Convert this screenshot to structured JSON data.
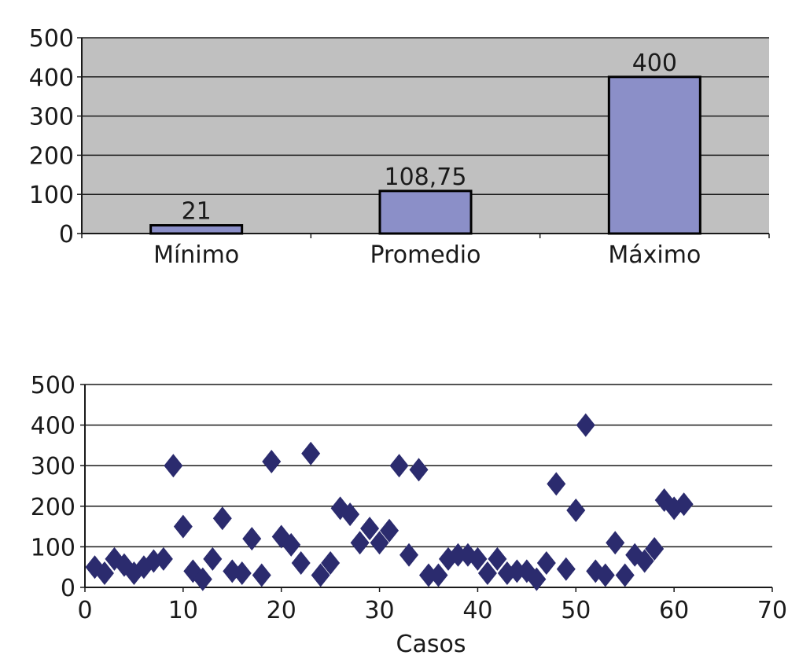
{
  "chart_data": [
    {
      "type": "bar",
      "categories": [
        "Mínimo",
        "Promedio",
        "Máximo"
      ],
      "values": [
        21,
        108.75,
        400
      ],
      "data_labels": [
        "21",
        "108,75",
        "400"
      ],
      "ylim": [
        0,
        500
      ],
      "yticks": [
        "0",
        "100",
        "200",
        "300",
        "400",
        "500"
      ],
      "grid": true,
      "colors": {
        "plot_bg": "#c0c0c0",
        "bar": "#8b8fc8",
        "bar_edge": "#000000",
        "grid": "#1a1a1a"
      }
    },
    {
      "type": "scatter",
      "xlabel": "Casos",
      "xlim": [
        0,
        70
      ],
      "ylim": [
        0,
        500
      ],
      "xticks": [
        "0",
        "10",
        "20",
        "30",
        "40",
        "50",
        "60",
        "70"
      ],
      "yticks": [
        "0",
        "100",
        "200",
        "300",
        "400",
        "500"
      ],
      "grid": true,
      "colors": {
        "marker": "#2b2b6e",
        "grid": "#1a1a1a"
      },
      "marker": "diamond",
      "points": [
        [
          1,
          50
        ],
        [
          2,
          35
        ],
        [
          3,
          70
        ],
        [
          4,
          55
        ],
        [
          5,
          35
        ],
        [
          6,
          50
        ],
        [
          7,
          65
        ],
        [
          8,
          70
        ],
        [
          9,
          300
        ],
        [
          10,
          150
        ],
        [
          11,
          40
        ],
        [
          12,
          20
        ],
        [
          13,
          70
        ],
        [
          14,
          170
        ],
        [
          15,
          40
        ],
        [
          16,
          35
        ],
        [
          17,
          120
        ],
        [
          18,
          30
        ],
        [
          19,
          310
        ],
        [
          20,
          125
        ],
        [
          21,
          105
        ],
        [
          22,
          60
        ],
        [
          23,
          330
        ],
        [
          24,
          30
        ],
        [
          25,
          60
        ],
        [
          26,
          195
        ],
        [
          27,
          180
        ],
        [
          28,
          110
        ],
        [
          29,
          145
        ],
        [
          30,
          110
        ],
        [
          31,
          140
        ],
        [
          32,
          300
        ],
        [
          33,
          80
        ],
        [
          34,
          290
        ],
        [
          35,
          30
        ],
        [
          36,
          30
        ],
        [
          37,
          70
        ],
        [
          38,
          80
        ],
        [
          39,
          80
        ],
        [
          40,
          70
        ],
        [
          41,
          35
        ],
        [
          42,
          70
        ],
        [
          43,
          35
        ],
        [
          44,
          40
        ],
        [
          45,
          40
        ],
        [
          46,
          20
        ],
        [
          47,
          60
        ],
        [
          48,
          255
        ],
        [
          49,
          45
        ],
        [
          50,
          190
        ],
        [
          51,
          400
        ],
        [
          52,
          40
        ],
        [
          53,
          30
        ],
        [
          54,
          110
        ],
        [
          55,
          30
        ],
        [
          56,
          80
        ],
        [
          57,
          65
        ],
        [
          58,
          95
        ],
        [
          59,
          215
        ],
        [
          60,
          195
        ],
        [
          61,
          205
        ]
      ]
    }
  ]
}
